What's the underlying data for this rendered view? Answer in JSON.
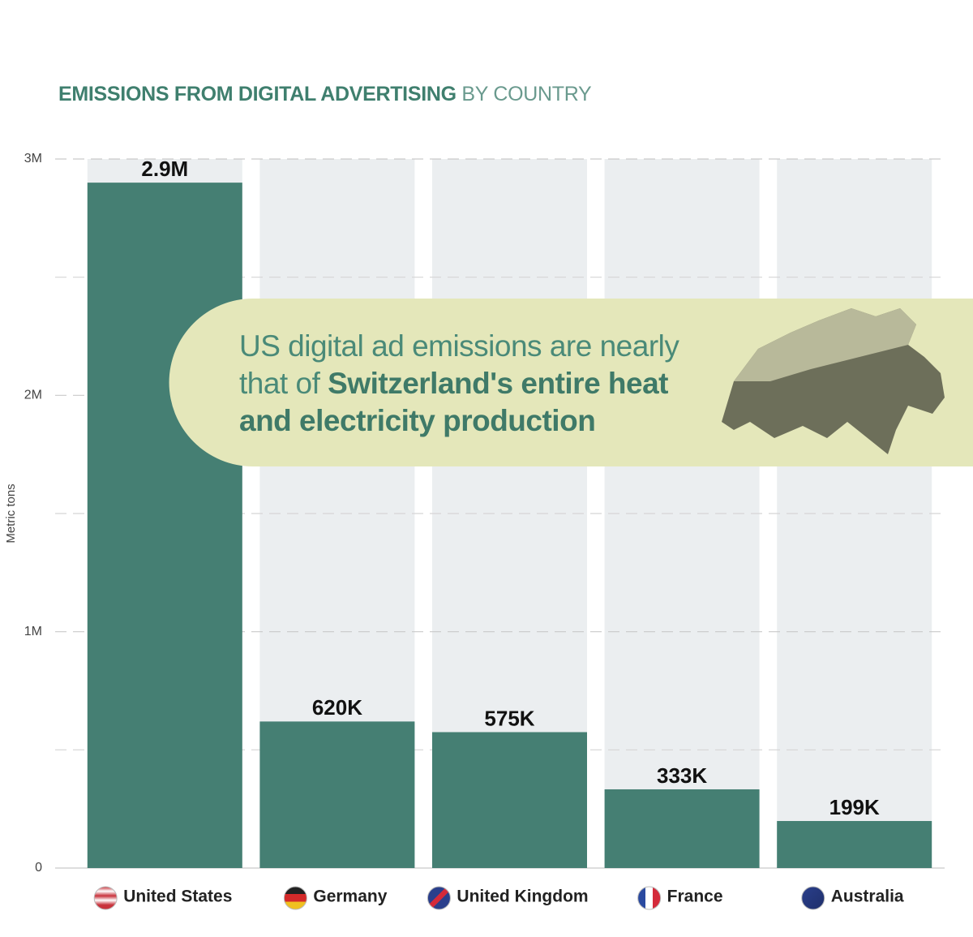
{
  "chart_data": {
    "type": "bar",
    "title": "EMISSIONS FROM DIGITAL ADVERTISING",
    "subtitle": "BY COUNTRY",
    "y_label": "Metric tons",
    "annotation": {
      "text": "US digital ad emissions are nearly that of",
      "emphasis": "Switzerland's entire heat and electricity production"
    },
    "categories": [
      "United States",
      "Germany",
      "United Kingdom",
      "France",
      "Australia"
    ],
    "values": [
      2900000,
      620000,
      575000,
      333000,
      199000
    ],
    "value_labels": [
      "2.9M",
      "620K",
      "575K",
      "333K",
      "199K"
    ],
    "color": "#457f73",
    "track_color": "#ebeef0",
    "ylim": [
      0,
      3000000
    ],
    "yticks": [
      0,
      {
        "value": 1000000,
        "label": "1M"
      },
      {
        "value": 2000000,
        "label": "2M"
      },
      {
        "value": 3000000,
        "label": "3M"
      }
    ],
    "minor_yticks": [
      500000,
      1500000,
      2500000
    ],
    "grid": true
  }
}
